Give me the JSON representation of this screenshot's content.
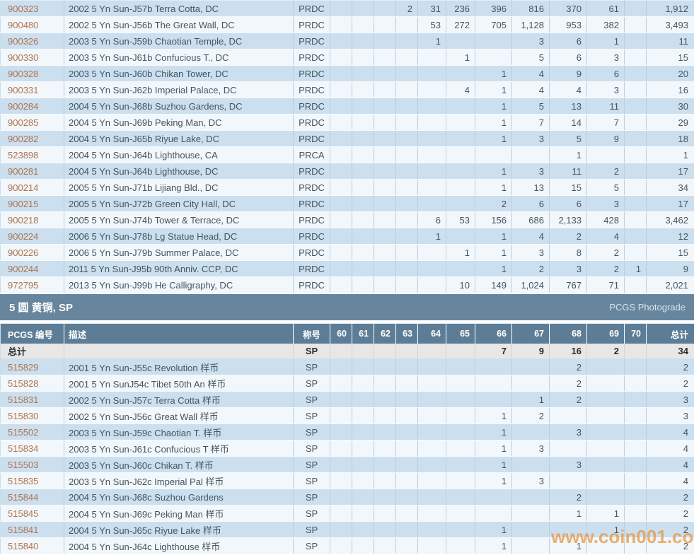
{
  "section_header": {
    "title": "5 圆 黄铜, SP",
    "link_label": "PCGS Photograde"
  },
  "columns": [
    "PCGS 编号",
    "描述",
    "称号",
    "60",
    "61",
    "62",
    "63",
    "64",
    "65",
    "66",
    "67",
    "68",
    "69",
    "70",
    "总计"
  ],
  "grade_keys": [
    "60",
    "61",
    "62",
    "63",
    "64",
    "65",
    "66",
    "67",
    "68",
    "69",
    "70",
    "total"
  ],
  "top_table": {
    "rows": [
      {
        "id": "900323",
        "desc": "2002 5 Yn Sun-J57b Terra Cotta, DC",
        "designation": "PRDC",
        "counts": {
          "63": "2",
          "64": "31",
          "65": "236",
          "66": "396",
          "67": "816",
          "68": "370",
          "69": "61",
          "total": "1,912"
        }
      },
      {
        "id": "900480",
        "desc": "2002 5 Yn Sun-J56b The Great Wall, DC",
        "designation": "PRDC",
        "counts": {
          "64": "53",
          "65": "272",
          "66": "705",
          "67": "1,128",
          "68": "953",
          "69": "382",
          "total": "3,493"
        }
      },
      {
        "id": "900326",
        "desc": "2003 5 Yn Sun-J59b Chaotian Temple, DC",
        "designation": "PRDC",
        "counts": {
          "64": "1",
          "67": "3",
          "68": "6",
          "69": "1",
          "total": "11"
        }
      },
      {
        "id": "900330",
        "desc": "2003 5 Yn Sun-J61b Confucious T., DC",
        "designation": "PRDC",
        "counts": {
          "65": "1",
          "67": "5",
          "68": "6",
          "69": "3",
          "total": "15"
        }
      },
      {
        "id": "900328",
        "desc": "2003 5 Yn Sun-J60b Chikan Tower, DC",
        "designation": "PRDC",
        "counts": {
          "66": "1",
          "67": "4",
          "68": "9",
          "69": "6",
          "total": "20"
        }
      },
      {
        "id": "900331",
        "desc": "2003 5 Yn Sun-J62b Imperial Palace, DC",
        "designation": "PRDC",
        "counts": {
          "65": "4",
          "66": "1",
          "67": "4",
          "68": "4",
          "69": "3",
          "total": "16"
        }
      },
      {
        "id": "900284",
        "desc": "2004 5 Yn Sun-J68b Suzhou Gardens, DC",
        "designation": "PRDC",
        "counts": {
          "66": "1",
          "67": "5",
          "68": "13",
          "69": "11",
          "total": "30"
        }
      },
      {
        "id": "900285",
        "desc": "2004 5 Yn Sun-J69b Peking Man, DC",
        "designation": "PRDC",
        "counts": {
          "66": "1",
          "67": "7",
          "68": "14",
          "69": "7",
          "total": "29"
        }
      },
      {
        "id": "900282",
        "desc": "2004 5 Yn Sun-J65b Riyue Lake, DC",
        "designation": "PRDC",
        "counts": {
          "66": "1",
          "67": "3",
          "68": "5",
          "69": "9",
          "total": "18"
        }
      },
      {
        "id": "523898",
        "desc": "2004 5 Yn Sun-J64b Lighthouse, CA",
        "designation": "PRCA",
        "counts": {
          "68": "1",
          "total": "1"
        }
      },
      {
        "id": "900281",
        "desc": "2004 5 Yn Sun-J64b Lighthouse, DC",
        "designation": "PRDC",
        "counts": {
          "66": "1",
          "67": "3",
          "68": "11",
          "69": "2",
          "total": "17"
        }
      },
      {
        "id": "900214",
        "desc": "2005 5 Yn Sun-J71b Lijiang Bld., DC",
        "designation": "PRDC",
        "counts": {
          "66": "1",
          "67": "13",
          "68": "15",
          "69": "5",
          "total": "34"
        }
      },
      {
        "id": "900215",
        "desc": "2005 5 Yn Sun-J72b Green City Hall, DC",
        "designation": "PRDC",
        "counts": {
          "66": "2",
          "67": "6",
          "68": "6",
          "69": "3",
          "total": "17"
        }
      },
      {
        "id": "900218",
        "desc": "2005 5 Yn Sun-J74b Tower & Terrace, DC",
        "designation": "PRDC",
        "counts": {
          "64": "6",
          "65": "53",
          "66": "156",
          "67": "686",
          "68": "2,133",
          "69": "428",
          "total": "3,462"
        }
      },
      {
        "id": "900224",
        "desc": "2006 5 Yn Sun-J78b Lg Statue Head, DC",
        "designation": "PRDC",
        "counts": {
          "64": "1",
          "66": "1",
          "67": "4",
          "68": "2",
          "69": "4",
          "total": "12"
        }
      },
      {
        "id": "900226",
        "desc": "2006 5 Yn Sun-J79b Summer Palace, DC",
        "designation": "PRDC",
        "counts": {
          "65": "1",
          "66": "1",
          "67": "3",
          "68": "8",
          "69": "2",
          "total": "15"
        }
      },
      {
        "id": "900244",
        "desc": "2011 5 Yn Sun-J95b 90th Anniv. CCP, DC",
        "designation": "PRDC",
        "counts": {
          "66": "1",
          "67": "2",
          "68": "3",
          "69": "2",
          "70": "1",
          "total": "9"
        }
      },
      {
        "id": "972795",
        "desc": "2013 5 Yn Sun-J99b He Calligraphy, DC",
        "designation": "PRDC",
        "counts": {
          "65": "10",
          "66": "149",
          "67": "1,024",
          "68": "767",
          "69": "71",
          "total": "2,021"
        }
      }
    ]
  },
  "bottom_table": {
    "totals_row": {
      "label": "总计",
      "designation": "SP",
      "counts": {
        "66": "7",
        "67": "9",
        "68": "16",
        "69": "2",
        "total": "34"
      }
    },
    "rows": [
      {
        "id": "515829",
        "desc": "2001 5 Yn Sun-J55c Revolution 样币",
        "designation": "SP",
        "counts": {
          "68": "2",
          "total": "2"
        }
      },
      {
        "id": "515828",
        "desc": "2001 5 Yn SunJ54c Tibet 50th An 样币",
        "designation": "SP",
        "counts": {
          "68": "2",
          "total": "2"
        }
      },
      {
        "id": "515831",
        "desc": "2002 5 Yn Sun-J57c Terra Cotta 样币",
        "designation": "SP",
        "counts": {
          "67": "1",
          "68": "2",
          "total": "3"
        }
      },
      {
        "id": "515830",
        "desc": "2002 5 Yn Sun-J56c Great Wall 样币",
        "designation": "SP",
        "counts": {
          "66": "1",
          "67": "2",
          "total": "3"
        }
      },
      {
        "id": "515502",
        "desc": "2003 5 Yn Sun-J59c Chaotian T. 样币",
        "designation": "SP",
        "counts": {
          "66": "1",
          "68": "3",
          "total": "4"
        }
      },
      {
        "id": "515834",
        "desc": "2003 5 Yn Sun-J61c Confucious T 样币",
        "designation": "SP",
        "counts": {
          "66": "1",
          "67": "3",
          "total": "4"
        }
      },
      {
        "id": "515503",
        "desc": "2003 5 Yn Sun-J60c Chikan T. 样币",
        "designation": "SP",
        "counts": {
          "66": "1",
          "68": "3",
          "total": "4"
        }
      },
      {
        "id": "515835",
        "desc": "2003 5 Yn Sun-J62c Imperial Pal 样币",
        "designation": "SP",
        "counts": {
          "66": "1",
          "67": "3",
          "total": "4"
        }
      },
      {
        "id": "515844",
        "desc": "2004 5 Yn Sun-J68c Suzhou Gardens",
        "designation": "SP",
        "counts": {
          "68": "2",
          "total": "2"
        }
      },
      {
        "id": "515845",
        "desc": "2004 5 Yn Sun-J69c Peking Man 样币",
        "designation": "SP",
        "counts": {
          "68": "1",
          "69": "1",
          "total": "2"
        }
      },
      {
        "id": "515841",
        "desc": "2004 5 Yn Sun-J65c Riyue Lake 样币",
        "designation": "SP",
        "counts": {
          "66": "1",
          "69": "1",
          "total": "2"
        }
      },
      {
        "id": "515840",
        "desc": "2004 5 Yn Sun-J64c Lighthouse 样币",
        "designation": "SP",
        "counts": {
          "66": "1",
          "68": "1",
          "total": "2"
        }
      }
    ]
  },
  "watermark": {
    "text": "www.coin001.com"
  },
  "colors": {
    "row_blue": "#cbdfef",
    "row_light": "#f2f7fb",
    "section_header_bg": "#67869e",
    "column_header_bg": "#5d7d96",
    "totals_row_bg": "#e7e7e7",
    "id_link": "#b0744f",
    "watermark_orange": "#e8943b"
  }
}
